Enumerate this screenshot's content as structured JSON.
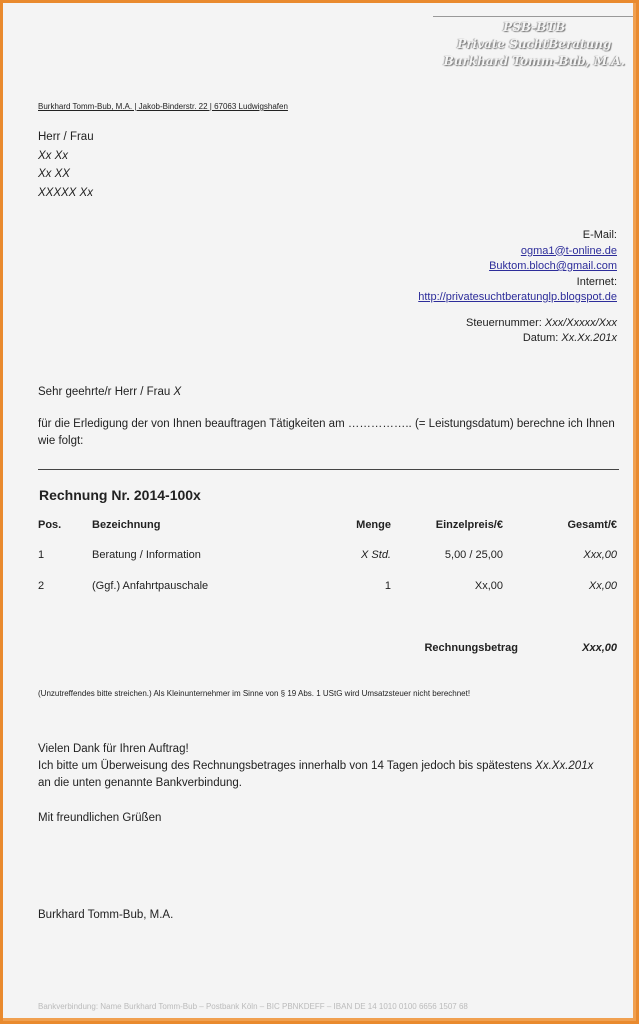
{
  "letterhead": {
    "lines": [
      "PSB-BTB",
      "Private SuchtBeratung",
      "Burkhard Tomm-Bub, M.A."
    ]
  },
  "sender_line": "Burkhard Tomm-Bub, M.A. | Jakob-Binderstr. 22 | 67063 Ludwigshafen",
  "recipient": {
    "salutation": "Herr / Frau",
    "name": "Xx Xx",
    "street": "Xx XX",
    "city": "XXXXX Xx"
  },
  "contact": {
    "email_label": "E-Mail:",
    "email1": "ogma1@t-online.de",
    "email2": "Buktom.bloch@gmail.com",
    "internet_label": "Internet:",
    "url": "http://privatesuchtberatunglp.blogspot.de",
    "tax_label": "Steuernummer:",
    "tax_value": "Xxx/Xxxxx/Xxx",
    "date_label": "Datum:",
    "date_value": "Xx.Xx.201x"
  },
  "greeting_prefix": "Sehr geehrte/r Herr / Frau ",
  "greeting_name": "X",
  "intro": "für die Erledigung der von Ihnen beauftragen Tätigkeiten am …………….. (= Leistungsdatum) berechne ich Ihnen wie folgt:",
  "invoice_title": "Rechnung Nr. 2014-100x",
  "table": {
    "headers": [
      "Pos.",
      "Bezeichnung",
      "Menge",
      "Einzelpreis/€",
      "Gesamt/€"
    ],
    "rows": [
      [
        "1",
        "Beratung / Information",
        "X Std.",
        "5,00 / 25,00",
        "Xxx,00"
      ],
      [
        "2",
        "(Ggf.) Anfahrtpauschale",
        "1",
        "Xx,00",
        "Xx,00"
      ]
    ],
    "total_label": "Rechnungsbetrag",
    "total_value": "Xxx,00"
  },
  "note": "(Unzutreffendes bitte streichen.) Als Kleinunternehmer im Sinne von § 19 Abs. 1 UStG wird Umsatzsteuer nicht berechnet!",
  "closing": {
    "thanks": "Vielen Dank für Ihren Auftrag!",
    "line2_prefix": "Ich bitte um Überweisung des Rechnungsbetrages innerhalb von 14 Tagen jedoch bis spätestens ",
    "line2_date": "Xx.Xx.201x",
    "line3": "an die unten genannte Bankverbindung.",
    "regards": "Mit freundlichen Grüßen",
    "signature": "Burkhard Tomm-Bub, M.A."
  },
  "footer": "Bankverbindung: Name Burkhard Tomm-Bub – Postbank Köln – BIC PBNKDEFF – IBAN DE 14 1010 0100 6656 1507 68"
}
